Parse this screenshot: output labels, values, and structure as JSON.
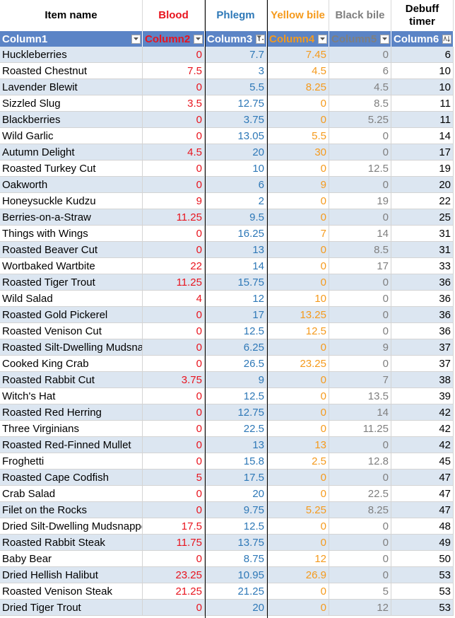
{
  "headers": {
    "item": "Item name",
    "blood": "Blood",
    "phlegm": "Phlegm",
    "yellow": "Yellow bile",
    "black": "Black bile",
    "debuff_line1": "Debuff",
    "debuff_line2": "timer"
  },
  "filter_row": [
    "Column1",
    "Column2",
    "Column3",
    "Column4",
    "Column5",
    "Column6"
  ],
  "colors": {
    "blood": "#e8141e",
    "phlegm": "#2e78b7",
    "yellow_bile": "#f59a1c",
    "black_bile": "#7f7f7f",
    "header_band": "#5b84c6",
    "row_band": "#dce6f1"
  },
  "rows": [
    [
      "Huckleberries",
      "0",
      "7.7",
      "7.45",
      "0",
      "6"
    ],
    [
      "Roasted Chestnut",
      "7.5",
      "3",
      "4.5",
      "6",
      "10"
    ],
    [
      "Lavender Blewit",
      "0",
      "5.5",
      "8.25",
      "4.5",
      "10"
    ],
    [
      "Sizzled Slug",
      "3.5",
      "12.75",
      "0",
      "8.5",
      "11"
    ],
    [
      "Blackberries",
      "0",
      "3.75",
      "0",
      "5.25",
      "11"
    ],
    [
      "Wild Garlic",
      "0",
      "13.05",
      "5.5",
      "0",
      "14"
    ],
    [
      "Autumn Delight",
      "4.5",
      "20",
      "30",
      "0",
      "17"
    ],
    [
      "Roasted Turkey Cut",
      "0",
      "10",
      "0",
      "12.5",
      "19"
    ],
    [
      "Oakworth",
      "0",
      "6",
      "9",
      "0",
      "20"
    ],
    [
      "Honeysuckle Kudzu",
      "9",
      "2",
      "0",
      "19",
      "22"
    ],
    [
      "Berries-on-a-Straw",
      "11.25",
      "9.5",
      "0",
      "0",
      "25"
    ],
    [
      "Things with Wings",
      "0",
      "16.25",
      "7",
      "14",
      "31"
    ],
    [
      "Roasted Beaver Cut",
      "0",
      "13",
      "0",
      "8.5",
      "31"
    ],
    [
      "Wortbaked Wartbite",
      "22",
      "14",
      "0",
      "17",
      "33"
    ],
    [
      "Roasted Tiger Trout",
      "11.25",
      "15.75",
      "0",
      "0",
      "36"
    ],
    [
      "Wild Salad",
      "4",
      "12",
      "10",
      "0",
      "36"
    ],
    [
      "Roasted Gold Pickerel",
      "0",
      "17",
      "13.25",
      "0",
      "36"
    ],
    [
      "Roasted Venison Cut",
      "0",
      "12.5",
      "12.5",
      "0",
      "36"
    ],
    [
      "Roasted Silt-Dwelling Mudsnapper",
      "0",
      "6.25",
      "0",
      "9",
      "37"
    ],
    [
      "Cooked King Crab",
      "0",
      "26.5",
      "23.25",
      "0",
      "37"
    ],
    [
      "Roasted Rabbit Cut",
      "3.75",
      "9",
      "0",
      "7",
      "38"
    ],
    [
      "Witch's Hat",
      "0",
      "12.5",
      "0",
      "13.5",
      "39"
    ],
    [
      "Roasted Red Herring",
      "0",
      "12.75",
      "0",
      "14",
      "42"
    ],
    [
      "Three Virginians",
      "0",
      "22.5",
      "0",
      "11.25",
      "42"
    ],
    [
      "Roasted Red-Finned Mullet",
      "0",
      "13",
      "13",
      "0",
      "42"
    ],
    [
      "Froghetti",
      "0",
      "15.8",
      "2.5",
      "12.8",
      "45"
    ],
    [
      "Roasted Cape Codfish",
      "5",
      "17.5",
      "0",
      "0",
      "47"
    ],
    [
      "Crab Salad",
      "0",
      "20",
      "0",
      "22.5",
      "47"
    ],
    [
      "Filet on the Rocks",
      "0",
      "9.75",
      "5.25",
      "8.25",
      "47"
    ],
    [
      "Dried Silt-Dwelling Mudsnapper",
      "17.5",
      "12.5",
      "0",
      "0",
      "48"
    ],
    [
      "Roasted Rabbit Steak",
      "11.75",
      "13.75",
      "0",
      "0",
      "49"
    ],
    [
      "Baby Bear",
      "0",
      "8.75",
      "12",
      "0",
      "50"
    ],
    [
      "Dried Hellish Halibut",
      "23.25",
      "10.95",
      "26.9",
      "0",
      "53"
    ],
    [
      "Roasted Venison Steak",
      "21.25",
      "21.25",
      "0",
      "5",
      "53"
    ],
    [
      "Dried Tiger Trout",
      "0",
      "20",
      "0",
      "12",
      "53"
    ]
  ]
}
